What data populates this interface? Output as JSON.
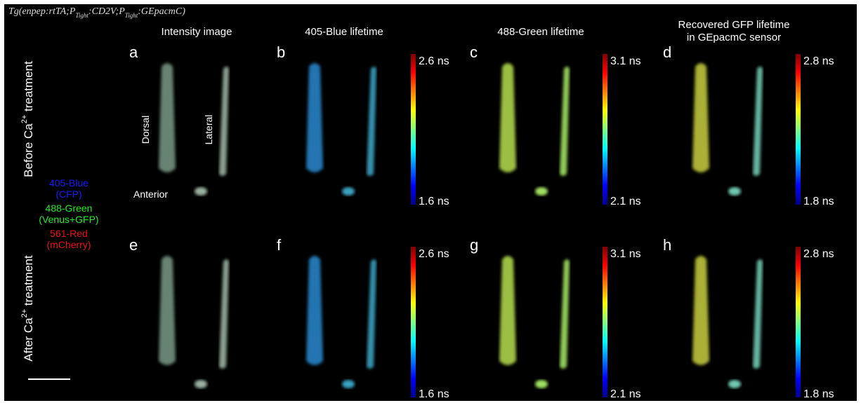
{
  "genotype": [
    "Tg(enpep:rtTA;P",
    "Tight",
    ":CD2V;P",
    "Tight",
    ":GEpacmC)"
  ],
  "column_headers": [
    "Intensity image",
    "405-Blue lifetime",
    "488-Green lifetime",
    "Recovered GFP lifetime",
    "in GEpacmC sensor"
  ],
  "row_labels": [
    [
      "Before Ca",
      "2+",
      " treatment"
    ],
    [
      "After Ca",
      "2+",
      " treatment"
    ]
  ],
  "panel_letters": [
    "a",
    "b",
    "c",
    "d",
    "e",
    "f",
    "g",
    "h"
  ],
  "colorbars": [
    {
      "top": "2.6 ns",
      "bottom": "1.6 ns"
    },
    {
      "top": "3.1 ns",
      "bottom": "2.1 ns"
    },
    {
      "top": "2.8 ns",
      "bottom": "1.8 ns"
    },
    {
      "top": "2.6 ns",
      "bottom": "1.6 ns"
    },
    {
      "top": "3.1 ns",
      "bottom": "2.1 ns"
    },
    {
      "top": "2.8 ns",
      "bottom": "1.8 ns"
    }
  ],
  "legend": [
    {
      "name": "405-Blue",
      "detail": "(CFP)",
      "color": "#1a1aff"
    },
    {
      "name": "488-Green",
      "detail": "(Venus+GFP)",
      "color": "#22ee22"
    },
    {
      "name": "561-Red",
      "detail": "(mCherry)",
      "color": "#ee1111"
    }
  ],
  "annotations": [
    "Dorsal",
    "Lateral",
    "Anterior"
  ]
}
